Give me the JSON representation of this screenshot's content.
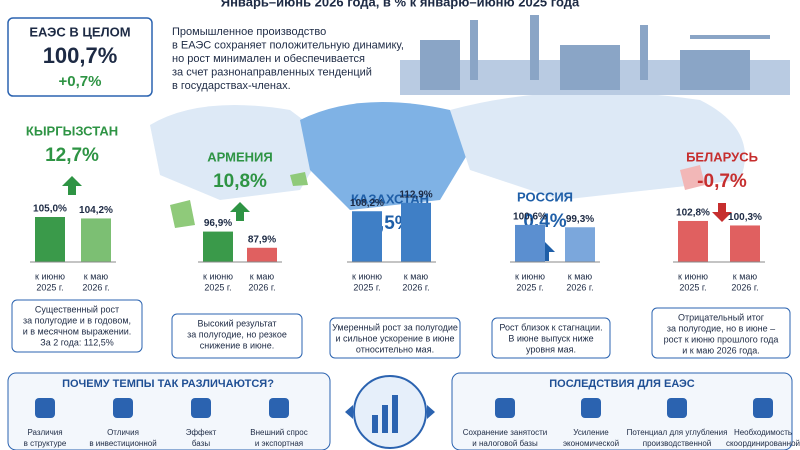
{
  "header": {
    "title": "Январь–июнь 2026 года, в % к январю–июню 2025 года"
  },
  "summary": {
    "label": "ЕАЭС В ЦЕЛОМ",
    "value": "100,7%",
    "change": "+0,7%"
  },
  "intro": [
    "Промышленное производство",
    "в ЕАЭС сохраняет положительную динамику,",
    "но рост минимален и обеспечивается",
    "за счет разнонаправленных тенденций",
    "в государствах-членах."
  ],
  "countries": [
    {
      "name": "КЫРГЫЗСТАН",
      "growth": "12,7%",
      "trend": "up",
      "color": "#2e9444",
      "bars": [
        {
          "value": 105.0,
          "label": "105,0%",
          "caption": [
            "к июню",
            "2025 г."
          ],
          "color": "#3a9a4a"
        },
        {
          "value": 104.2,
          "label": "104,2%",
          "caption": [
            "к маю",
            "2026 г."
          ],
          "color": "#7cbf73"
        }
      ],
      "note": [
        "Существенный рост",
        "за полугодие и в годовом,",
        "и в месячном выражении.",
        "За 2 года: 112,5%"
      ]
    },
    {
      "name": "АРМЕНИЯ",
      "growth": "10,8%",
      "trend": "up",
      "color": "#2e9444",
      "bars": [
        {
          "value": 96.9,
          "label": "96,9%",
          "caption": [
            "к июню",
            "2025 г."
          ],
          "color": "#3a9a4a"
        },
        {
          "value": 87.9,
          "label": "87,9%",
          "caption": [
            "к маю",
            "2026 г."
          ],
          "color": "#e06060"
        }
      ],
      "note": [
        "Высокий результат",
        "за полугодие, но резкое",
        "снижение в июне."
      ]
    },
    {
      "name": "КАЗАХСТАН",
      "growth": "3,5%",
      "trend": "none",
      "color": "#1f5fa8",
      "bars": [
        {
          "value": 108.2,
          "label": "108,2%",
          "caption": [
            "к июню",
            "2025 г."
          ],
          "color": "#3f7fc6"
        },
        {
          "value": 112.9,
          "label": "112,9%",
          "caption": [
            "к маю",
            "2026 г."
          ],
          "color": "#3f7fc6"
        }
      ],
      "note": [
        "Умеренный рост за полугодие",
        "и сильное ускорение в июне",
        "относительно мая."
      ]
    },
    {
      "name": "РОССИЯ",
      "growth": "0,4%",
      "trend": "up",
      "color": "#1f5fa8",
      "bars": [
        {
          "value": 100.6,
          "label": "100,6%",
          "caption": [
            "к июню",
            "2025 г."
          ],
          "color": "#5b8fd0"
        },
        {
          "value": 99.3,
          "label": "99,3%",
          "caption": [
            "к маю",
            "2026 г."
          ],
          "color": "#7ba7dc"
        }
      ],
      "note": [
        "Рост близок к стагнации.",
        "В июне выпуск ниже",
        "уровня мая."
      ]
    },
    {
      "name": "БЕЛАРУСЬ",
      "growth": "-0,7%",
      "trend": "down",
      "color": "#c62e2e",
      "bars": [
        {
          "value": 102.8,
          "label": "102,8%",
          "caption": [
            "к июню",
            "2025 г."
          ],
          "color": "#e06060"
        },
        {
          "value": 100.3,
          "label": "100,3%",
          "caption": [
            "к маю",
            "2026 г."
          ],
          "color": "#e06060"
        }
      ],
      "note": [
        "Отрицательный итог",
        "за полугодие, но в июне –",
        "рост к июню прошлого года",
        "и к маю 2026 года."
      ]
    }
  ],
  "reasons": {
    "title": "ПОЧЕМУ ТЕМПЫ ТАК РАЗЛИЧАЮТСЯ?",
    "items": [
      [
        "Различия",
        "в структуре"
      ],
      [
        "Отличия",
        "в инвестиционной"
      ],
      [
        "Эффект",
        "базы"
      ],
      [
        "Внешний спрос",
        "и экспортная"
      ]
    ]
  },
  "consequences": {
    "title": "ПОСЛЕДСТВИЯ ДЛЯ ЕАЭС",
    "items": [
      [
        "Сохранение занятости",
        "и налоговой базы"
      ],
      [
        "Усиление",
        "экономической"
      ],
      [
        "Потенциал для углубления",
        "производственной"
      ],
      [
        "Необходимость",
        "скоординированной"
      ]
    ]
  }
}
